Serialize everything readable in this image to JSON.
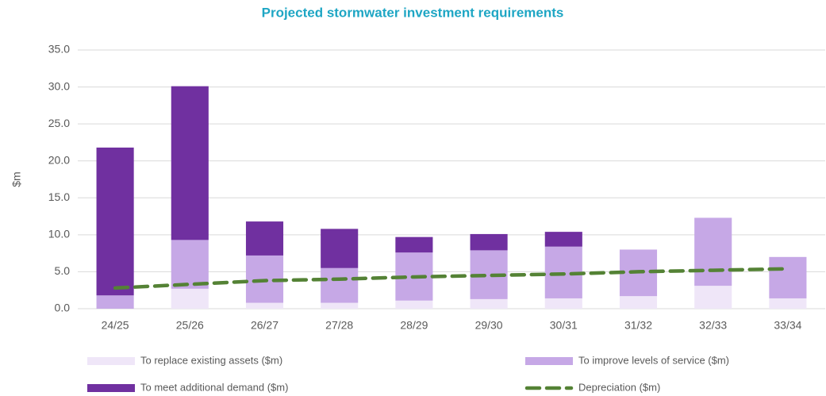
{
  "chart_data": {
    "type": "bar",
    "stacked": true,
    "title": "Projected stormwater investment requirements",
    "y_label": "$m",
    "categories": [
      "24/25",
      "25/26",
      "26/27",
      "27/28",
      "28/29",
      "29/30",
      "30/31",
      "31/32",
      "32/33",
      "33/34"
    ],
    "series": [
      {
        "name": "To replace existing assets ($m)",
        "color": "#efe6f8",
        "values": [
          0.0,
          2.7,
          0.8,
          0.8,
          1.1,
          1.3,
          1.4,
          1.7,
          3.1,
          1.4
        ]
      },
      {
        "name": "To improve levels of service ($m)",
        "color": "#c6a8e6",
        "values": [
          1.8,
          6.6,
          6.4,
          4.7,
          6.5,
          6.6,
          7.0,
          6.3,
          9.2,
          5.6
        ]
      },
      {
        "name": "To meet additional demand ($m)",
        "color": "#7030a0",
        "values": [
          20.0,
          20.8,
          4.6,
          5.3,
          2.1,
          2.2,
          2.0,
          0,
          0,
          0
        ]
      },
      {
        "name": "Depreciation ($m)",
        "color": "#548235",
        "type": "line",
        "dashed": true,
        "values": [
          2.8,
          3.3,
          3.8,
          4.0,
          4.3,
          4.5,
          4.7,
          5.0,
          5.2,
          5.4
        ]
      }
    ],
    "ylim": [
      0,
      35
    ],
    "yticks": [
      {
        "value": 0,
        "label": "0.0"
      },
      {
        "value": 5,
        "label": "5.0"
      },
      {
        "value": 10,
        "label": "10.0"
      },
      {
        "value": 15,
        "label": "15.0"
      },
      {
        "value": 20,
        "label": "20.0"
      },
      {
        "value": 25,
        "label": "25.0"
      },
      {
        "value": 30,
        "label": "30.0"
      },
      {
        "value": 35,
        "label": "35.0"
      }
    ],
    "grid": true,
    "legend": "bottom"
  }
}
